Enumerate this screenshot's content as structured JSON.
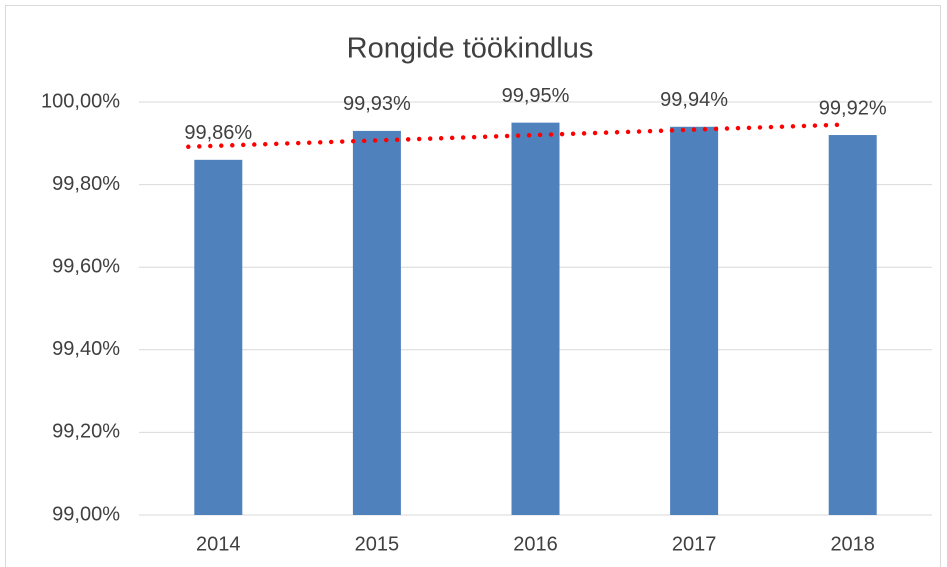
{
  "chart_data": {
    "type": "bar",
    "title": "Rongide töökindlus",
    "categories": [
      "2014",
      "2015",
      "2016",
      "2017",
      "2018"
    ],
    "values": [
      99.86,
      99.93,
      99.95,
      99.94,
      99.92
    ],
    "value_labels": [
      "99,86%",
      "99,93%",
      "99,95%",
      "99,94%",
      "99,92%"
    ],
    "color": "#4f81bd",
    "ylim": [
      99,
      100
    ],
    "yticks": [
      {
        "value": 99,
        "label": "99,00%"
      },
      {
        "value": 99.2,
        "label": "99,20%"
      },
      {
        "value": 99.4,
        "label": "99,40%"
      },
      {
        "value": 99.6,
        "label": "99,60%"
      },
      {
        "value": 99.8,
        "label": "99,80%"
      },
      {
        "value": 100,
        "label": "100,00%"
      }
    ],
    "grid": true,
    "trendline": {
      "kind": "linear",
      "color": "#ff0000",
      "style": "dotted"
    }
  }
}
